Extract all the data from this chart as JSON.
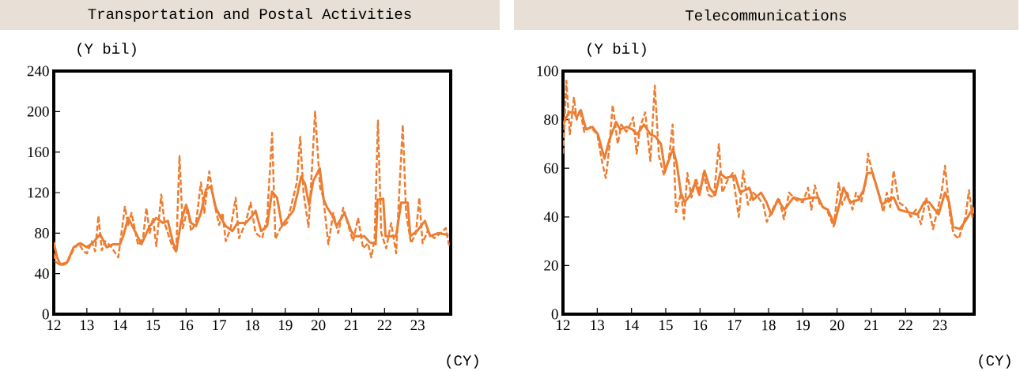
{
  "chart_data": [
    {
      "type": "line",
      "title": "Transportation and Postal Activities",
      "ylabel": "(Y bil)",
      "xlabel": "(CY)",
      "xlim": [
        12,
        24
      ],
      "xticks": [
        12,
        13,
        14,
        15,
        16,
        17,
        18,
        19,
        20,
        21,
        22,
        23
      ],
      "ylim": [
        0,
        240
      ],
      "yticks": [
        0,
        40,
        80,
        120,
        160,
        200,
        240
      ],
      "grid": false,
      "series": [
        {
          "color": "#ed7d31",
          "line_style": "solid",
          "x": [
            12.0,
            12.1,
            12.2,
            12.4,
            12.6,
            12.8,
            13.0,
            13.2,
            13.4,
            13.6,
            13.8,
            14.0,
            14.1,
            14.25,
            14.5,
            14.65,
            14.9,
            15.1,
            15.3,
            15.45,
            15.6,
            15.7,
            15.85,
            16.0,
            16.15,
            16.3,
            16.45,
            16.6,
            16.75,
            16.9,
            17.05,
            17.2,
            17.4,
            17.55,
            17.8,
            17.95,
            18.1,
            18.27,
            18.45,
            18.6,
            18.75,
            18.9,
            19.0,
            19.24,
            19.36,
            19.48,
            19.6,
            19.72,
            19.84,
            20.04,
            20.16,
            20.27,
            20.43,
            20.55,
            20.79,
            20.99,
            21.11,
            21.39,
            21.55,
            21.73,
            21.79,
            21.96,
            22.03,
            22.35,
            22.5,
            22.7,
            22.78,
            22.98,
            23.22,
            23.38,
            23.62,
            23.94
          ],
          "values": [
            71,
            56,
            49,
            51,
            66,
            70,
            66,
            71,
            79,
            66,
            69,
            69,
            77,
            95,
            79,
            69,
            87,
            95,
            90,
            92,
            71,
            62,
            92,
            108,
            90,
            87,
            100,
            123,
            126,
            105,
            95,
            87,
            82,
            90,
            90,
            95,
            102,
            82,
            87,
            121,
            115,
            87,
            92,
            102,
            118,
            136,
            128,
            108,
            131,
            144,
            113,
            105,
            97,
            87,
            100,
            82,
            77,
            77,
            71,
            69,
            113,
            114,
            77,
            77,
            110,
            110,
            77,
            82,
            92,
            77,
            80,
            78
          ]
        },
        {
          "color": "#ed7d31",
          "line_style": "dashed",
          "x": [
            12.0,
            12.05,
            12.2,
            12.4,
            12.6,
            12.75,
            12.9,
            13.0,
            13.15,
            13.25,
            13.35,
            13.45,
            13.55,
            13.7,
            13.95,
            14.15,
            14.25,
            14.35,
            14.55,
            14.7,
            14.8,
            14.9,
            15.0,
            15.1,
            15.25,
            15.35,
            15.55,
            15.7,
            15.8,
            15.9,
            16.05,
            16.15,
            16.3,
            16.45,
            16.55,
            16.7,
            16.85,
            17.0,
            17.1,
            17.2,
            17.35,
            17.5,
            17.6,
            17.8,
            17.95,
            18.1,
            18.3,
            18.45,
            18.6,
            18.7,
            18.85,
            19.05,
            19.2,
            19.35,
            19.45,
            19.55,
            19.7,
            19.8,
            19.9,
            20.05,
            20.15,
            20.3,
            20.45,
            20.6,
            20.75,
            20.9,
            21.05,
            21.2,
            21.35,
            21.5,
            21.6,
            21.7,
            21.8,
            21.9,
            22.05,
            22.2,
            22.35,
            22.55,
            22.65,
            22.8,
            22.95,
            23.05,
            23.15,
            23.3,
            23.5,
            23.7,
            23.85,
            23.95
          ],
          "values": [
            60,
            52,
            48,
            50,
            64,
            70,
            62,
            60,
            72,
            62,
            97,
            63,
            72,
            68,
            56,
            106,
            88,
            100,
            68,
            75,
            105,
            80,
            95,
            67,
            118,
            90,
            70,
            61,
            156,
            85,
            105,
            82,
            90,
            130,
            100,
            141,
            110,
            88,
            100,
            72,
            85,
            115,
            75,
            90,
            110,
            80,
            75,
            95,
            179,
            74,
            85,
            90,
            110,
            130,
            175,
            120,
            86,
            140,
            200,
            125,
            115,
            69,
            100,
            80,
            105,
            88,
            72,
            95,
            65,
            70,
            56,
            75,
            191,
            80,
            65,
            90,
            60,
            187,
            100,
            70,
            80,
            115,
            70,
            82,
            75,
            80,
            85,
            68
          ]
        }
      ]
    },
    {
      "type": "line",
      "title": "Telecommunications",
      "ylabel": "(Y bil)",
      "xlabel": "(CY)",
      "xlim": [
        12,
        24
      ],
      "xticks": [
        12,
        13,
        14,
        15,
        16,
        17,
        18,
        19,
        20,
        21,
        22,
        23
      ],
      "ylim": [
        0,
        100
      ],
      "yticks": [
        0,
        20,
        40,
        60,
        80,
        100
      ],
      "grid": false,
      "series": [
        {
          "color": "#ed7d31",
          "line_style": "solid",
          "x": [
            12.0,
            12.17,
            12.32,
            12.4,
            12.52,
            12.67,
            12.86,
            13.02,
            13.21,
            13.36,
            13.55,
            13.67,
            13.86,
            14.02,
            14.17,
            14.36,
            14.55,
            14.7,
            14.86,
            14.98,
            15.21,
            15.32,
            15.44,
            15.55,
            15.71,
            15.86,
            15.98,
            16.13,
            16.28,
            16.44,
            16.59,
            16.75,
            17.02,
            17.17,
            17.44,
            17.55,
            17.78,
            17.94,
            18.08,
            18.27,
            18.46,
            18.73,
            18.96,
            19.27,
            19.45,
            19.58,
            19.73,
            19.92,
            20.19,
            20.38,
            20.62,
            20.77,
            20.88,
            21.04,
            21.31,
            21.5,
            21.65,
            21.81,
            22.04,
            22.35,
            22.54,
            22.69,
            22.96,
            23.15,
            23.27,
            23.38,
            23.58,
            23.73,
            23.9,
            23.98
          ],
          "values": [
            78,
            83,
            83,
            81,
            84,
            76,
            77,
            74,
            64,
            72,
            79,
            76,
            77,
            76,
            74,
            78,
            74,
            73,
            70,
            59,
            68,
            62,
            50,
            46,
            49,
            54,
            49,
            59,
            52,
            49,
            58,
            56,
            57,
            50,
            52,
            47,
            50,
            46,
            41,
            47,
            43,
            48,
            47,
            48,
            48,
            44,
            43,
            37,
            52,
            46,
            47,
            51,
            58,
            58,
            45,
            47,
            48,
            43,
            42,
            41,
            46,
            46,
            41,
            50,
            46,
            36,
            35,
            38,
            42,
            44
          ]
        },
        {
          "color": "#ed7d31",
          "line_style": "dashed",
          "x": [
            12.0,
            12.05,
            12.1,
            12.2,
            12.32,
            12.4,
            12.5,
            12.62,
            12.8,
            13.0,
            13.15,
            13.25,
            13.35,
            13.45,
            13.6,
            13.7,
            13.85,
            14.0,
            14.05,
            14.15,
            14.25,
            14.4,
            14.55,
            14.68,
            14.8,
            14.95,
            15.1,
            15.2,
            15.3,
            15.45,
            15.53,
            15.63,
            15.75,
            15.88,
            16.0,
            16.1,
            16.25,
            16.4,
            16.55,
            16.65,
            16.8,
            16.95,
            17.13,
            17.26,
            17.4,
            17.55,
            17.7,
            17.85,
            17.95,
            18.15,
            18.3,
            18.45,
            18.6,
            18.8,
            19.0,
            19.15,
            19.25,
            19.35,
            19.5,
            19.7,
            19.9,
            20.05,
            20.15,
            20.3,
            20.45,
            20.55,
            20.7,
            20.85,
            20.9,
            21.05,
            21.2,
            21.35,
            21.45,
            21.55,
            21.65,
            21.8,
            22.0,
            22.15,
            22.3,
            22.45,
            22.6,
            22.7,
            22.8,
            22.95,
            23.05,
            23.15,
            23.3,
            23.4,
            23.55,
            23.75,
            23.85,
            23.95,
            24.0
          ],
          "values": [
            66,
            80,
            96,
            74,
            89,
            80,
            84,
            75,
            77,
            74,
            62,
            56,
            68,
            86,
            70,
            78,
            75,
            79,
            81,
            66,
            77,
            83,
            63,
            94,
            65,
            57,
            65,
            78,
            42,
            50,
            39,
            58,
            48,
            56,
            50,
            58,
            49,
            48,
            70,
            50,
            55,
            58,
            40,
            59,
            45,
            50,
            48,
            45,
            38,
            44,
            48,
            39,
            50,
            47,
            46,
            52,
            43,
            53,
            45,
            43,
            36,
            54,
            45,
            50,
            43,
            50,
            46,
            55,
            66,
            57,
            50,
            42,
            50,
            44,
            59,
            46,
            44,
            40,
            43,
            37,
            48,
            42,
            35,
            44,
            50,
            61,
            40,
            33,
            31,
            40,
            51,
            40,
            44
          ]
        }
      ]
    }
  ]
}
